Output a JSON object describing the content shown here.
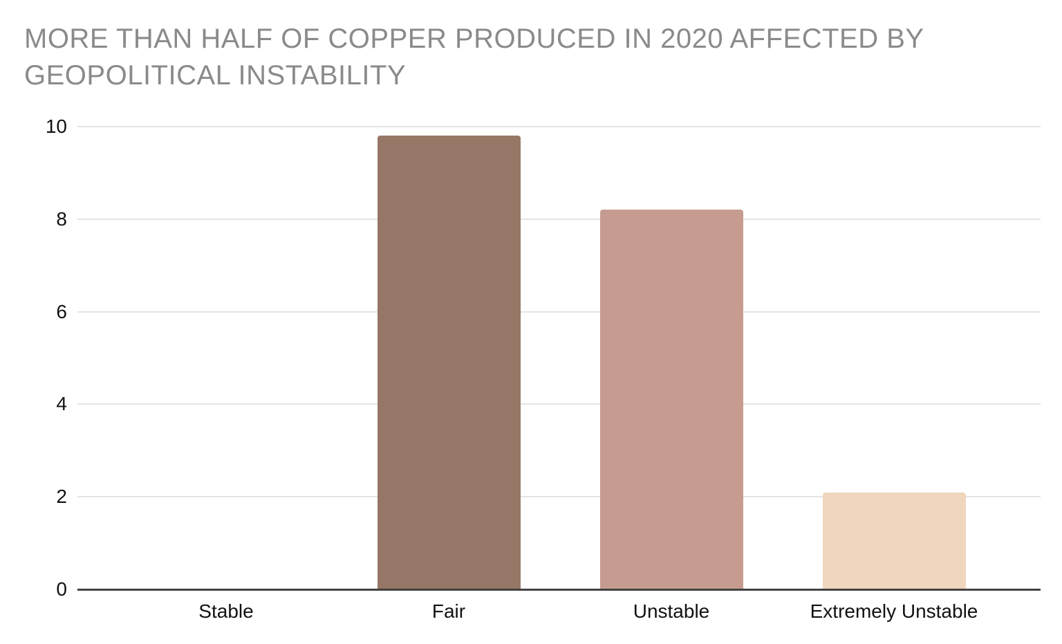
{
  "page": {
    "background": "#ffffff"
  },
  "chart_data": {
    "type": "bar",
    "title": "MORE THAN HALF OF COPPER PRODUCED IN 2020 AFFECTED BY GEOPOLITICAL INSTABILITY",
    "categories": [
      "Stable",
      "Fair",
      "Unstable",
      "Extremely Unstable"
    ],
    "values": [
      0,
      9.8,
      8.2,
      2.1
    ],
    "bar_colors": [
      null,
      "#967767",
      "#c79c90",
      "#f0d6bd"
    ],
    "xlabel": "",
    "ylabel": "",
    "ylim": [
      0,
      10
    ],
    "yticks": [
      0,
      2,
      4,
      6,
      8,
      10
    ],
    "grid": "horizontal",
    "legend": "none"
  },
  "colors": {
    "title_text": "#8a8a8a",
    "axis_text": "#111111",
    "gridline": "#e4e4e4",
    "axis_line": "#424242"
  }
}
